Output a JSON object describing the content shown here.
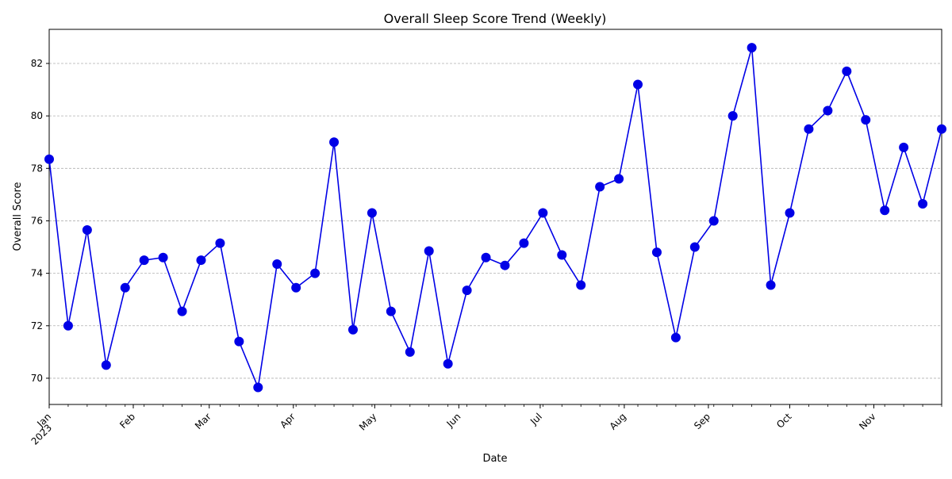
{
  "chart_data": {
    "type": "line",
    "title": "Overall Sleep Score Trend (Weekly)",
    "xlabel": "Date",
    "ylabel": "Overall Score",
    "x": [
      "2023-01-01",
      "2023-01-08",
      "2023-01-15",
      "2023-01-22",
      "2023-01-29",
      "2023-02-05",
      "2023-02-12",
      "2023-02-19",
      "2023-02-26",
      "2023-03-05",
      "2023-03-12",
      "2023-03-19",
      "2023-03-26",
      "2023-04-02",
      "2023-04-09",
      "2023-04-16",
      "2023-04-23",
      "2023-04-30",
      "2023-05-07",
      "2023-05-14",
      "2023-05-21",
      "2023-05-28",
      "2023-06-04",
      "2023-06-11",
      "2023-06-18",
      "2023-06-25",
      "2023-07-02",
      "2023-07-09",
      "2023-07-16",
      "2023-07-23",
      "2023-07-30",
      "2023-08-06",
      "2023-08-13",
      "2023-08-20",
      "2023-08-27",
      "2023-09-03",
      "2023-09-10",
      "2023-09-17",
      "2023-09-24",
      "2023-10-01",
      "2023-10-08",
      "2023-10-15",
      "2023-10-22",
      "2023-10-29",
      "2023-11-05",
      "2023-11-12",
      "2023-11-19",
      "2023-11-26"
    ],
    "series": [
      {
        "values": [
          78.35,
          72.0,
          75.65,
          70.5,
          73.45,
          74.5,
          74.6,
          72.55,
          74.5,
          75.15,
          71.4,
          69.65,
          74.35,
          73.45,
          74.0,
          79.0,
          71.85,
          76.3,
          72.55,
          71.0,
          74.85,
          70.55,
          73.35,
          74.6,
          74.3,
          75.15,
          76.3,
          74.7,
          73.55,
          77.3,
          77.6,
          81.2,
          74.8,
          71.55,
          75.0,
          76.0,
          80.0,
          82.6,
          73.55,
          76.3,
          79.5,
          80.2,
          81.7,
          79.85,
          76.4,
          78.8,
          76.65,
          79.5
        ],
        "color": "#0000e6"
      }
    ],
    "xlim": [
      "2023-01-01",
      "2023-11-26"
    ],
    "ylim": [
      69.0,
      83.3
    ],
    "y_ticks": [
      70,
      72,
      74,
      76,
      78,
      80,
      82
    ],
    "x_ticks": [
      {
        "date": "2023-01-01",
        "label": "Jan"
      },
      {
        "date": "2023-02-01",
        "label": "Feb"
      },
      {
        "date": "2023-03-01",
        "label": "Mar"
      },
      {
        "date": "2023-04-01",
        "label": "Apr"
      },
      {
        "date": "2023-05-01",
        "label": "May"
      },
      {
        "date": "2023-06-01",
        "label": "Jun"
      },
      {
        "date": "2023-07-01",
        "label": "Jul"
      },
      {
        "date": "2023-08-01",
        "label": "Aug"
      },
      {
        "date": "2023-09-01",
        "label": "Sep"
      },
      {
        "date": "2023-10-01",
        "label": "Oct"
      },
      {
        "date": "2023-11-01",
        "label": "Nov"
      }
    ],
    "year_label": "2023",
    "grid": "horizontal dashed",
    "marker": "circle"
  }
}
